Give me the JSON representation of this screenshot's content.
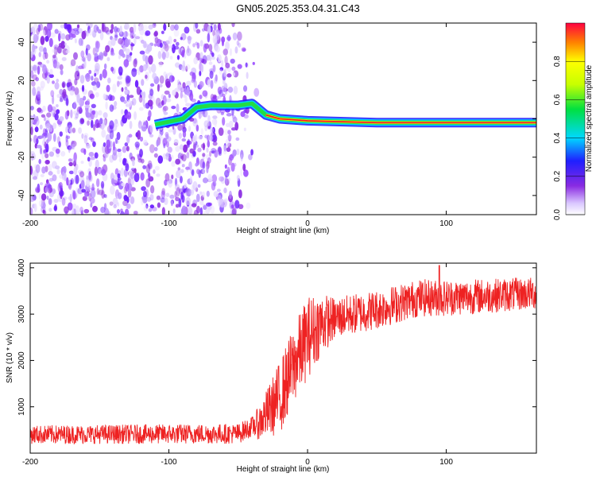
{
  "chart_data": [
    {
      "type": "heatmap",
      "title": "GN05.2025.353.04.31.C43",
      "xlabel": "Height of straight line (km)",
      "ylabel": "Frequency (Hz)",
      "xlim": [
        -200,
        165
      ],
      "ylim": [
        -50,
        50
      ],
      "xticks": [
        "-200",
        "-100",
        "0",
        "100"
      ],
      "yticks": [
        "-40",
        "-20",
        "0",
        "20",
        "40"
      ],
      "colorbar": {
        "label": "Normalized spectral amplitude",
        "range": [
          0,
          1
        ],
        "ticks": [
          "0.0",
          "0.2",
          "0.4",
          "0.6",
          "0.8"
        ]
      },
      "features": {
        "noise_region_x": [
          -200,
          -35
        ],
        "ridge_path": [
          {
            "x": -110,
            "y": -3
          },
          {
            "x": -90,
            "y": 0
          },
          {
            "x": -80,
            "y": 6
          },
          {
            "x": -70,
            "y": 7
          },
          {
            "x": -50,
            "y": 7
          },
          {
            "x": -40,
            "y": 8
          },
          {
            "x": -30,
            "y": 2
          },
          {
            "x": -20,
            "y": 0
          },
          {
            "x": 0,
            "y": -1
          },
          {
            "x": 50,
            "y": -2
          },
          {
            "x": 100,
            "y": -2
          },
          {
            "x": 165,
            "y": -2
          }
        ]
      }
    },
    {
      "type": "line",
      "title": "",
      "xlabel": "Height of straight line (km)",
      "ylabel": "SNR (10 * v/v)",
      "xlim": [
        -200,
        165
      ],
      "ylim": [
        0,
        4100
      ],
      "xticks": [
        "-200",
        "-100",
        "0",
        "100"
      ],
      "yticks": [
        "1000",
        "2000",
        "3000",
        "4000"
      ],
      "series": [
        {
          "color": "#ee2222",
          "trend": [
            {
              "x": -200,
              "y": 400
            },
            {
              "x": -50,
              "y": 420
            },
            {
              "x": -35,
              "y": 650
            },
            {
              "x": -20,
              "y": 1200
            },
            {
              "x": -10,
              "y": 1900
            },
            {
              "x": 0,
              "y": 2500
            },
            {
              "x": 10,
              "y": 2800
            },
            {
              "x": 25,
              "y": 2950
            },
            {
              "x": 50,
              "y": 3100
            },
            {
              "x": 80,
              "y": 3350
            },
            {
              "x": 100,
              "y": 3350
            },
            {
              "x": 165,
              "y": 3450
            }
          ],
          "noise_amplitude": [
            {
              "x": -200,
              "y": 200
            },
            {
              "x": -40,
              "y": 220
            },
            {
              "x": -20,
              "y": 800
            },
            {
              "x": 0,
              "y": 900
            },
            {
              "x": 20,
              "y": 450
            },
            {
              "x": 165,
              "y": 350
            }
          ],
          "peak": {
            "x": 95,
            "y": 4050
          }
        }
      ]
    }
  ]
}
